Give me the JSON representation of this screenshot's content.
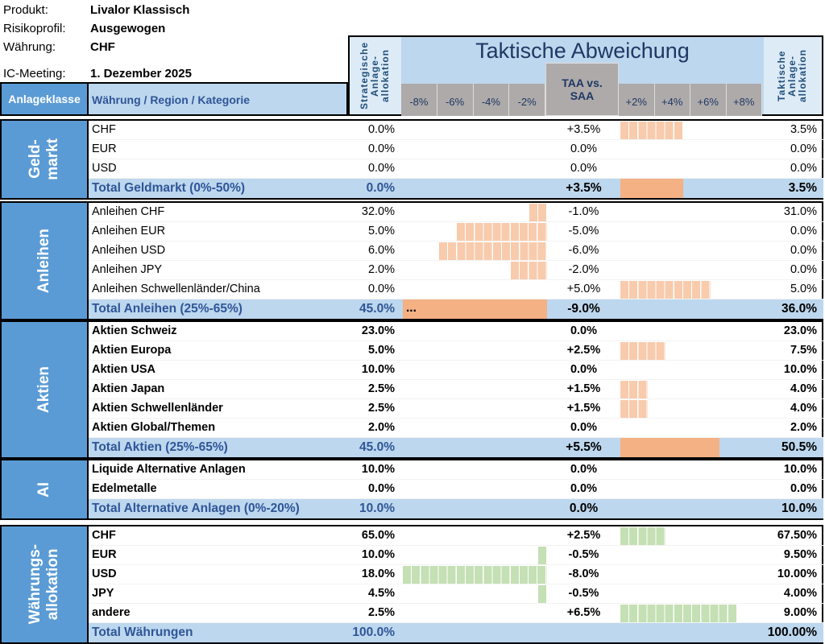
{
  "meta": [
    {
      "label": "Produkt:",
      "value": "Livalor Klassisch"
    },
    {
      "label": "Risikoprofil:",
      "value": "Ausgewogen"
    },
    {
      "label": "Währung:",
      "value": "CHF"
    },
    {
      "label": "IC-Meeting:",
      "value": "1. Dezember 2025"
    }
  ],
  "header": {
    "anlageklasse": "Anlageklasse",
    "kategorie": "Währung / Region / Kategorie",
    "saa": "Strategische Anlage-allokation",
    "title": "Taktische Abweichung",
    "taa": "TAA vs. SAA",
    "tac": "Taktische Anlage-allokation",
    "ticks_neg": [
      "-8%",
      "-6%",
      "-4%",
      "-2%"
    ],
    "ticks_pos": [
      "+2%",
      "+4%",
      "+6%",
      "+8%"
    ]
  },
  "colors": {
    "bar_orange": "#f8cbad",
    "total_orange": "#f4b183",
    "bar_green": "#c5e0b4",
    "blue": "#5b9bd5",
    "light_blue": "#bdd7ee"
  },
  "sections": [
    {
      "label": "Geld-\nmarkt",
      "bold": false,
      "color": "orange",
      "rows": [
        {
          "cat": "CHF",
          "saa": "0.0%",
          "taa": "+3.5%",
          "tac": "3.5%",
          "dev": 3.5
        },
        {
          "cat": "EUR",
          "saa": "0.0%",
          "taa": "0.0%",
          "tac": "0.0%",
          "dev": 0
        },
        {
          "cat": "USD",
          "saa": "0.0%",
          "taa": "0.0%",
          "tac": "0.0%",
          "dev": 0
        },
        {
          "cat": "Total Geldmarkt (0%-50%)",
          "saa": "0.0%",
          "taa": "+3.5%",
          "tac": "3.5%",
          "dev": 3.5,
          "total": true
        }
      ]
    },
    {
      "label": "Anleihen",
      "bold": false,
      "color": "orange",
      "rows": [
        {
          "cat": "Anleihen CHF",
          "saa": "32.0%",
          "taa": "-1.0%",
          "tac": "31.0%",
          "dev": -1
        },
        {
          "cat": "Anleihen EUR",
          "saa": "5.0%",
          "taa": "-5.0%",
          "tac": "0.0%",
          "dev": -5
        },
        {
          "cat": "Anleihen USD",
          "saa": "6.0%",
          "taa": "-6.0%",
          "tac": "0.0%",
          "dev": -6
        },
        {
          "cat": "Anleihen JPY",
          "saa": "2.0%",
          "taa": "-2.0%",
          "tac": "0.0%",
          "dev": -2
        },
        {
          "cat": "Anleihen Schwellenländer/China",
          "saa": "0.0%",
          "taa": "+5.0%",
          "tac": "5.0%",
          "dev": 5
        },
        {
          "cat": "Total Anleihen (25%-65%)",
          "saa": "45.0%",
          "taa": "-9.0%",
          "tac": "36.0%",
          "dev": -9,
          "total": true,
          "overflow": "..."
        }
      ]
    },
    {
      "label": "Aktien",
      "bold": true,
      "color": "orange",
      "rows": [
        {
          "cat": "Aktien Schweiz",
          "saa": "23.0%",
          "taa": "0.0%",
          "tac": "23.0%",
          "dev": 0
        },
        {
          "cat": "Aktien Europa",
          "saa": "5.0%",
          "taa": "+2.5%",
          "tac": "7.5%",
          "dev": 2.5
        },
        {
          "cat": "Aktien USA",
          "saa": "10.0%",
          "taa": "0.0%",
          "tac": "10.0%",
          "dev": 0
        },
        {
          "cat": "Aktien Japan",
          "saa": "2.5%",
          "taa": "+1.5%",
          "tac": "4.0%",
          "dev": 1.5
        },
        {
          "cat": "Aktien Schwellenländer",
          "saa": "2.5%",
          "taa": "+1.5%",
          "tac": "4.0%",
          "dev": 1.5
        },
        {
          "cat": "Aktien Global/Themen",
          "saa": "2.0%",
          "taa": "0.0%",
          "tac": "2.0%",
          "dev": 0
        },
        {
          "cat": "Total Aktien (25%-65%)",
          "saa": "45.0%",
          "taa": "+5.5%",
          "tac": "50.5%",
          "dev": 5.5,
          "total": true
        }
      ]
    },
    {
      "label": "AI",
      "bold": true,
      "color": "orange",
      "rows": [
        {
          "cat": "Liquide Alternative Anlagen",
          "saa": "10.0%",
          "taa": "0.0%",
          "tac": "10.0%",
          "dev": 0
        },
        {
          "cat": "Edelmetalle",
          "saa": "0.0%",
          "taa": "0.0%",
          "tac": "0.0%",
          "dev": 0
        },
        {
          "cat": "Total Alternative Anlagen (0%-20%)",
          "saa": "10.0%",
          "taa": "0.0%",
          "tac": "10.0%",
          "dev": 0,
          "total": true
        }
      ]
    },
    {
      "label": "Währungs-\nallokation",
      "bold": true,
      "color": "green",
      "rows": [
        {
          "cat": "CHF",
          "saa": "65.0%",
          "taa": "+2.5%",
          "tac": "67.50%",
          "dev": 2.5
        },
        {
          "cat": "EUR",
          "saa": "10.0%",
          "taa": "-0.5%",
          "tac": "9.50%",
          "dev": -0.5
        },
        {
          "cat": "USD",
          "saa": "18.0%",
          "taa": "-8.0%",
          "tac": "10.00%",
          "dev": -8
        },
        {
          "cat": "JPY",
          "saa": "4.5%",
          "taa": "-0.5%",
          "tac": "4.00%",
          "dev": -0.5
        },
        {
          "cat": "andere",
          "saa": "2.5%",
          "taa": "+6.5%",
          "tac": "9.00%",
          "dev": 6.5
        },
        {
          "cat": "Total Währungen",
          "saa": "100.0%",
          "taa": "",
          "tac": "100.00%",
          "dev": 0,
          "total": true
        }
      ]
    }
  ]
}
